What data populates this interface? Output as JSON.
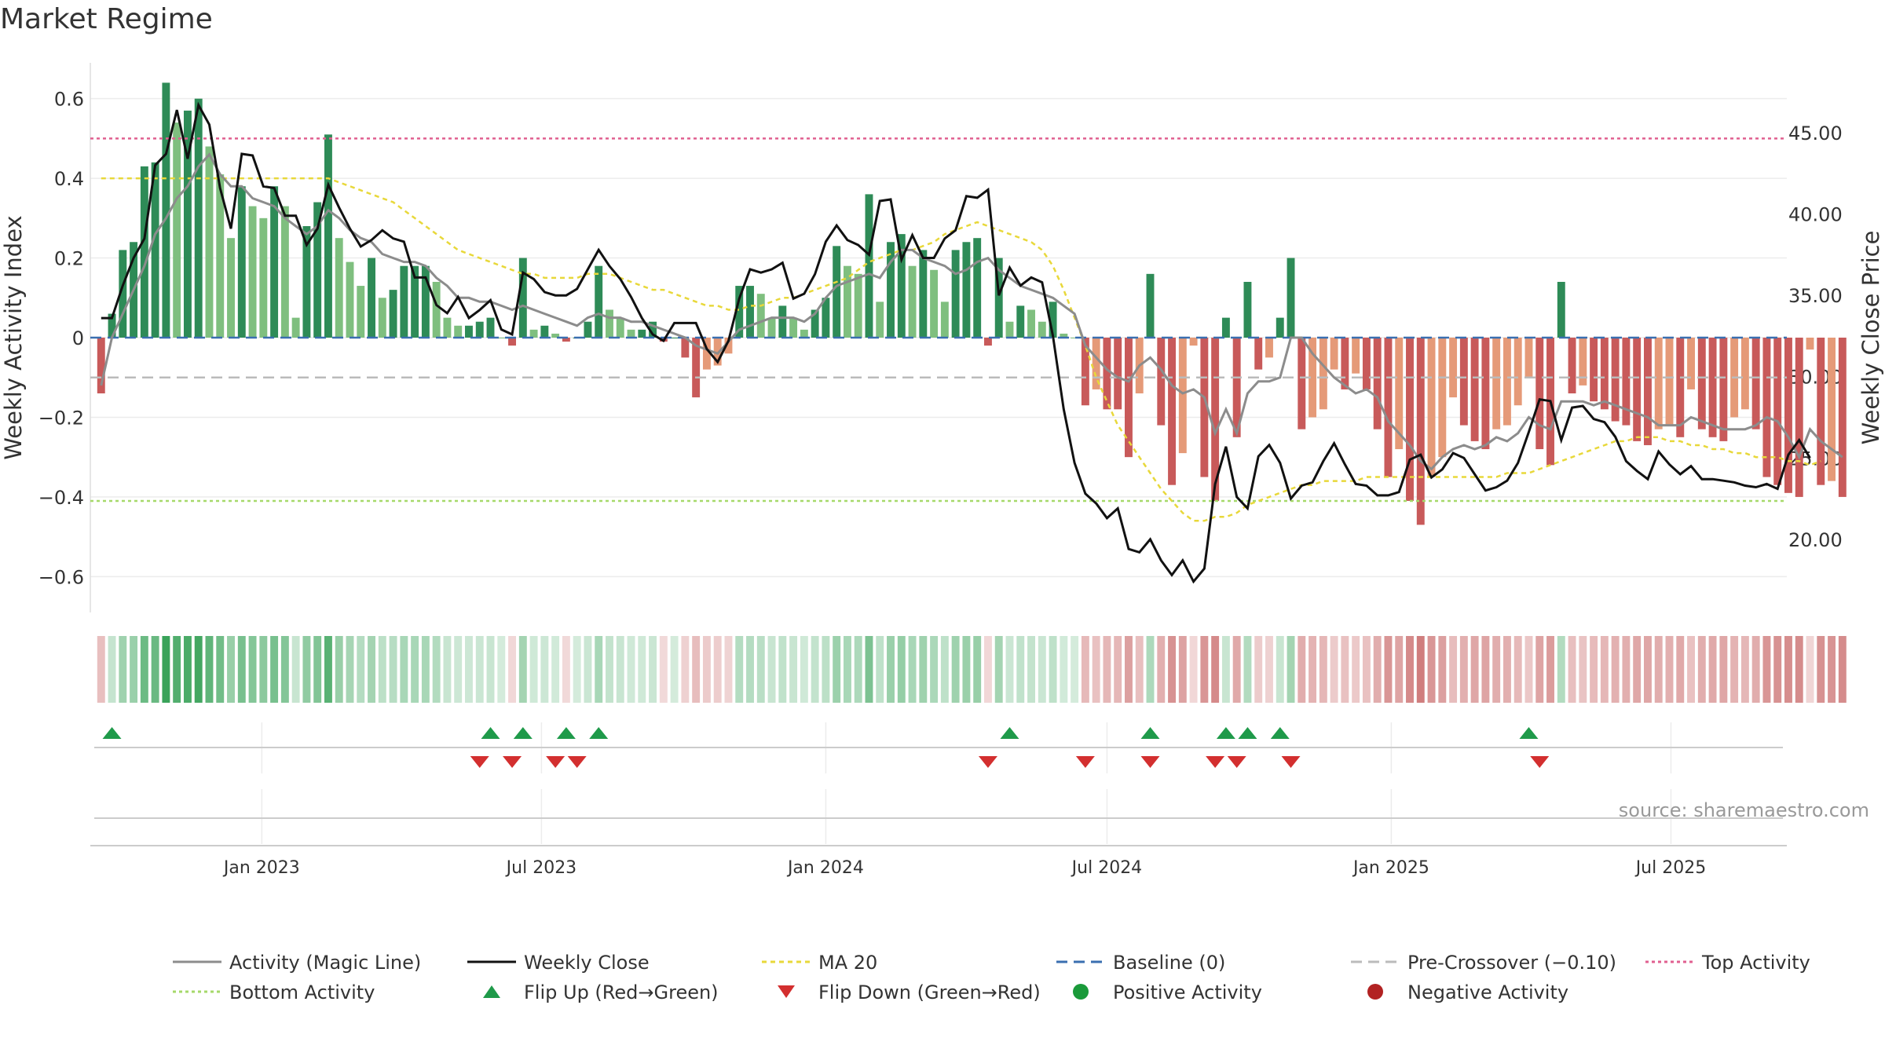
{
  "chart_data": {
    "type": "bar",
    "title": "Market Regime",
    "ylabel": "Weekly Activity Index",
    "y2label": "Weekly Close Price",
    "ylim": [
      -0.69,
      0.69
    ],
    "y2lim": [
      15.5,
      49.3
    ],
    "yticks": [
      0.6,
      0.4,
      0.2,
      0,
      -0.2,
      -0.4,
      -0.6
    ],
    "ytick_labels": [
      "0.6",
      "0.4",
      "0.2",
      "0",
      "−0.2",
      "−0.4",
      "−0.6"
    ],
    "y2ticks": [
      45,
      40,
      35,
      30,
      25,
      20
    ],
    "y2tick_labels": [
      "45.00",
      "40.00",
      "35.00",
      "30.00",
      "25.00",
      "20.00"
    ],
    "xlim": [
      "2022-09-12",
      "2025-09-14"
    ],
    "xticks": [
      "2023-01-01",
      "2023-07-01",
      "2024-01-01",
      "2024-07-01",
      "2025-01-01",
      "2025-07-01"
    ],
    "xtick_labels": [
      "Jan 2023",
      "Jul 2023",
      "Jan 2024",
      "Jul 2024",
      "Jan 2025",
      "Jul 2025"
    ],
    "start_date": "2022-09-19",
    "week_step_days": 7,
    "activity": [
      -0.14,
      0.06,
      0.22,
      0.24,
      0.43,
      0.44,
      0.64,
      0.54,
      0.57,
      0.6,
      0.48,
      0.41,
      0.25,
      0.38,
      0.33,
      0.3,
      0.38,
      0.33,
      0.05,
      0.28,
      0.34,
      0.51,
      0.25,
      0.19,
      0.13,
      0.2,
      0.1,
      0.12,
      0.18,
      0.18,
      0.18,
      0.14,
      0.05,
      0.03,
      0.03,
      0.04,
      0.05,
      0.0,
      -0.02,
      0.2,
      0.02,
      0.03,
      0.01,
      -0.01,
      0.0,
      0.04,
      0.18,
      0.07,
      0.05,
      0.02,
      0.02,
      0.04,
      -0.01,
      0.0,
      -0.05,
      -0.15,
      -0.08,
      -0.07,
      -0.04,
      0.13,
      0.13,
      0.11,
      0.05,
      0.08,
      0.05,
      0.02,
      0.07,
      0.1,
      0.23,
      0.18,
      0.16,
      0.36,
      0.09,
      0.24,
      0.26,
      0.18,
      0.22,
      0.17,
      0.09,
      0.22,
      0.24,
      0.25,
      -0.02,
      0.2,
      0.04,
      0.08,
      0.07,
      0.04,
      0.09,
      0.01,
      0.0,
      -0.17,
      -0.13,
      -0.18,
      -0.18,
      -0.3,
      -0.14,
      0.16,
      -0.22,
      -0.37,
      -0.29,
      -0.02,
      -0.35,
      -0.41,
      0.05,
      -0.25,
      0.14,
      -0.08,
      -0.05,
      0.05,
      0.2,
      -0.23,
      -0.2,
      -0.18,
      -0.08,
      -0.13,
      -0.09,
      -0.13,
      -0.23,
      -0.35,
      -0.28,
      -0.41,
      -0.47,
      -0.35,
      -0.3,
      -0.15,
      -0.22,
      -0.26,
      -0.28,
      -0.23,
      -0.22,
      -0.17,
      -0.1,
      -0.28,
      -0.32,
      0.14,
      -0.14,
      -0.12,
      -0.16,
      -0.18,
      -0.21,
      -0.22,
      -0.26,
      -0.27,
      -0.23,
      -0.22,
      -0.25,
      -0.13,
      -0.23,
      -0.25,
      -0.26,
      -0.2,
      -0.18,
      -0.23,
      -0.35,
      -0.37,
      -0.39,
      -0.4,
      -0.03,
      -0.37,
      -0.36,
      -0.4
    ],
    "activity_magic_line": [
      -0.12,
      0.0,
      0.06,
      0.12,
      0.18,
      0.26,
      0.3,
      0.35,
      0.38,
      0.43,
      0.46,
      0.41,
      0.38,
      0.38,
      0.35,
      0.34,
      0.33,
      0.3,
      0.28,
      0.26,
      0.28,
      0.32,
      0.3,
      0.27,
      0.25,
      0.24,
      0.21,
      0.2,
      0.19,
      0.19,
      0.18,
      0.15,
      0.13,
      0.1,
      0.1,
      0.09,
      0.09,
      0.08,
      0.07,
      0.08,
      0.07,
      0.06,
      0.05,
      0.04,
      0.03,
      0.05,
      0.06,
      0.05,
      0.05,
      0.04,
      0.04,
      0.03,
      0.02,
      0.01,
      0.0,
      -0.02,
      -0.03,
      -0.04,
      -0.01,
      0.02,
      0.03,
      0.04,
      0.05,
      0.05,
      0.05,
      0.04,
      0.06,
      0.1,
      0.13,
      0.14,
      0.15,
      0.16,
      0.15,
      0.19,
      0.22,
      0.22,
      0.2,
      0.19,
      0.18,
      0.16,
      0.17,
      0.19,
      0.2,
      0.17,
      0.15,
      0.13,
      0.12,
      0.11,
      0.1,
      0.08,
      0.06,
      -0.02,
      -0.05,
      -0.08,
      -0.1,
      -0.11,
      -0.07,
      -0.05,
      -0.08,
      -0.12,
      -0.14,
      -0.13,
      -0.15,
      -0.24,
      -0.18,
      -0.24,
      -0.14,
      -0.11,
      -0.11,
      -0.1,
      0.0,
      0.0,
      -0.04,
      -0.07,
      -0.1,
      -0.12,
      -0.14,
      -0.13,
      -0.15,
      -0.21,
      -0.24,
      -0.27,
      -0.31,
      -0.33,
      -0.3,
      -0.28,
      -0.27,
      -0.28,
      -0.27,
      -0.25,
      -0.26,
      -0.24,
      -0.2,
      -0.22,
      -0.23,
      -0.16,
      -0.16,
      -0.16,
      -0.17,
      -0.16,
      -0.17,
      -0.18,
      -0.19,
      -0.2,
      -0.22,
      -0.22,
      -0.22,
      -0.2,
      -0.21,
      -0.22,
      -0.23,
      -0.23,
      -0.23,
      -0.22,
      -0.2,
      -0.21,
      -0.25,
      -0.3,
      -0.23,
      -0.26,
      -0.28,
      -0.3
    ],
    "weekly_close": [
      33.6,
      33.6,
      35.6,
      37.3,
      38.5,
      43.0,
      43.7,
      46.4,
      43.4,
      46.7,
      45.5,
      41.6,
      39.1,
      43.7,
      43.6,
      41.7,
      41.6,
      39.9,
      39.9,
      38.1,
      39.1,
      41.8,
      40.4,
      39.1,
      38.0,
      38.4,
      39.0,
      38.5,
      38.3,
      36.1,
      36.1,
      34.4,
      33.9,
      34.9,
      33.6,
      34.1,
      34.7,
      32.9,
      32.6,
      36.4,
      36.0,
      35.2,
      35.0,
      35.0,
      35.4,
      36.6,
      37.8,
      36.8,
      36.0,
      34.9,
      33.6,
      32.6,
      32.2,
      33.3,
      33.3,
      33.3,
      31.7,
      30.9,
      32.2,
      34.8,
      36.6,
      36.4,
      36.6,
      37.0,
      34.8,
      35.1,
      36.3,
      38.3,
      39.3,
      38.4,
      38.1,
      37.5,
      40.8,
      40.9,
      37.2,
      38.7,
      37.3,
      37.3,
      38.5,
      39.0,
      41.1,
      41.0,
      41.5,
      35.0,
      36.7,
      35.6,
      36.1,
      35.8,
      32.5,
      28.0,
      24.7,
      22.8,
      22.2,
      21.3,
      21.9,
      19.4,
      19.2,
      20.0,
      18.7,
      17.8,
      18.7,
      17.4,
      18.2,
      23.4,
      25.7,
      22.6,
      21.9,
      25.1,
      25.8,
      24.7,
      22.5,
      23.3,
      23.5,
      24.8,
      25.9,
      24.6,
      23.4,
      23.3,
      22.7,
      22.7,
      22.9,
      24.9,
      25.2,
      23.8,
      24.3,
      25.3,
      25.0,
      24.0,
      23.0,
      23.2,
      23.6,
      24.7,
      26.6,
      28.6,
      28.5,
      26.1,
      28.1,
      28.2,
      27.4,
      27.2,
      26.3,
      24.8,
      24.2,
      23.7,
      25.4,
      24.6,
      24.0,
      24.5,
      23.7,
      23.7,
      23.6,
      23.5,
      23.3,
      23.2,
      23.4,
      23.1,
      25.2,
      26.1,
      25.0
    ],
    "ma20": [
      0.4,
      0.4,
      0.4,
      0.4,
      0.4,
      0.4,
      0.4,
      0.4,
      0.4,
      0.4,
      0.4,
      0.4,
      0.4,
      0.4,
      0.4,
      0.4,
      0.4,
      0.4,
      0.4,
      0.4,
      0.4,
      0.4,
      0.39,
      0.38,
      0.37,
      0.36,
      0.35,
      0.34,
      0.32,
      0.3,
      0.28,
      0.26,
      0.24,
      0.22,
      0.21,
      0.2,
      0.19,
      0.18,
      0.17,
      0.16,
      0.16,
      0.15,
      0.15,
      0.15,
      0.15,
      0.16,
      0.16,
      0.16,
      0.15,
      0.14,
      0.13,
      0.12,
      0.12,
      0.11,
      0.1,
      0.09,
      0.08,
      0.08,
      0.07,
      0.07,
      0.08,
      0.08,
      0.09,
      0.1,
      0.1,
      0.11,
      0.12,
      0.13,
      0.14,
      0.15,
      0.17,
      0.19,
      0.2,
      0.21,
      0.22,
      0.22,
      0.23,
      0.24,
      0.26,
      0.27,
      0.28,
      0.29,
      0.28,
      0.27,
      0.26,
      0.25,
      0.24,
      0.22,
      0.18,
      0.12,
      0.05,
      -0.02,
      -0.1,
      -0.16,
      -0.22,
      -0.26,
      -0.3,
      -0.34,
      -0.38,
      -0.41,
      -0.44,
      -0.46,
      -0.46,
      -0.45,
      -0.45,
      -0.44,
      -0.42,
      -0.41,
      -0.4,
      -0.39,
      -0.38,
      -0.37,
      -0.37,
      -0.36,
      -0.36,
      -0.36,
      -0.36,
      -0.35,
      -0.35,
      -0.35,
      -0.35,
      -0.35,
      -0.35,
      -0.35,
      -0.35,
      -0.35,
      -0.35,
      -0.35,
      -0.35,
      -0.35,
      -0.34,
      -0.34,
      -0.34,
      -0.33,
      -0.32,
      -0.31,
      -0.3,
      -0.29,
      -0.28,
      -0.27,
      -0.26,
      -0.26,
      -0.25,
      -0.25,
      -0.25,
      -0.26,
      -0.26,
      -0.27,
      -0.27,
      -0.28,
      -0.28,
      -0.29,
      -0.29,
      -0.3,
      -0.3,
      -0.3,
      -0.31,
      -0.31,
      -0.32,
      -0.31
    ],
    "top_activity": 0.5,
    "bottom_activity": -0.41,
    "baseline": 0,
    "pre_crossover": -0.1,
    "flip_up_weeks": [
      1,
      36,
      39,
      43,
      46,
      84,
      97,
      104,
      106,
      109,
      132
    ],
    "flip_down_weeks": [
      35,
      38,
      42,
      44,
      82,
      91,
      97,
      103,
      105,
      110,
      133
    ],
    "colors": {
      "pos_strong": "#2e8b57",
      "pos_weak": "#7fbf7f",
      "neg_strong": "#c85a5a",
      "neg_weak": "#e59a78",
      "magic_line": "#8c8c8c",
      "close": "#111111",
      "ma20": "#e8d83a",
      "baseline": "#3a6fb0",
      "pre_crossover": "#bbbbbb",
      "top_activity": "#e06090",
      "bottom_activity": "#a6d96a",
      "flip_up": "#1f9a4a",
      "flip_down": "#d32f2f",
      "positive_dot": "#1a9a3a",
      "negative_dot": "#b22222"
    },
    "legend": [
      {
        "kind": "line",
        "label": "Activity (Magic Line)",
        "color": "#8c8c8c",
        "dash": ""
      },
      {
        "kind": "line",
        "label": "Weekly Close",
        "color": "#111111",
        "dash": ""
      },
      {
        "kind": "line",
        "label": "MA 20",
        "color": "#e8d83a",
        "dash": "6 5"
      },
      {
        "kind": "line",
        "label": "Baseline (0)",
        "color": "#3a6fb0",
        "dash": "14 8"
      },
      {
        "kind": "line",
        "label": "Pre-Crossover (−0.10)",
        "color": "#bbbbbb",
        "dash": "14 8"
      },
      {
        "kind": "line",
        "label": "Top Activity",
        "color": "#e06090",
        "dash": "4 4"
      },
      {
        "kind": "line",
        "label": "Bottom Activity",
        "color": "#a6d96a",
        "dash": "4 4"
      },
      {
        "kind": "up",
        "label": "Flip Up (Red→Green)",
        "color": "#1f9a4a"
      },
      {
        "kind": "down",
        "label": "Flip Down (Green→Red)",
        "color": "#d32f2f"
      },
      {
        "kind": "dot",
        "label": "Positive Activity",
        "color": "#1a9a3a"
      },
      {
        "kind": "dot",
        "label": "Negative Activity",
        "color": "#b22222"
      }
    ],
    "source": "source: sharemaestro.com"
  }
}
